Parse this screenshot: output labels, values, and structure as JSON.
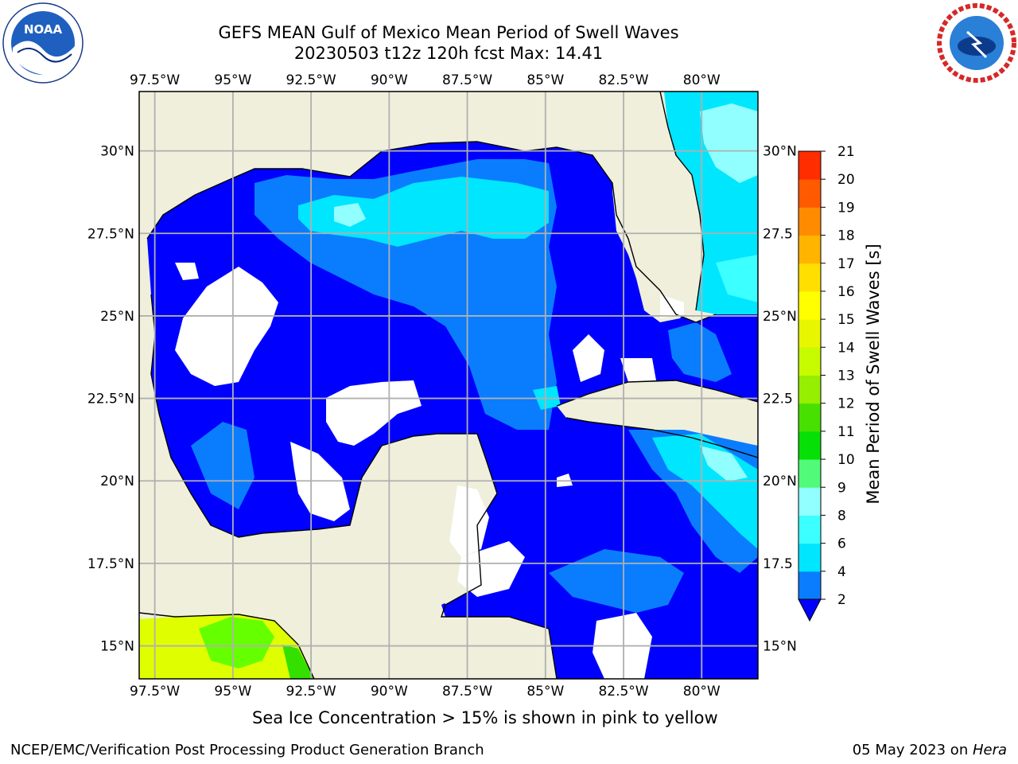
{
  "title": {
    "line1": "GEFS MEAN Gulf of Mexico Mean Period of Swell Waves",
    "line2": "20230503 t12z 120h fcst   Max: 14.41"
  },
  "axes": {
    "lon_labels": [
      "97.5°W",
      "95°W",
      "92.5°W",
      "90°W",
      "87.5°W",
      "85°W",
      "82.5°W",
      "80°W"
    ],
    "lon_values": [
      -97.5,
      -95,
      -92.5,
      -90,
      -87.5,
      -85,
      -82.5,
      -80
    ],
    "lat_labels": [
      "30°N",
      "27.5°N",
      "25°N",
      "22.5°N",
      "20°N",
      "17.5°N",
      "15°N"
    ],
    "lat_values": [
      30,
      27.5,
      25,
      22.5,
      20,
      17.5,
      15
    ],
    "right_lat_labels": [
      "30°N",
      "27.5",
      "25°N",
      "22.5",
      "20°N",
      "17.5",
      "15°N"
    ],
    "lon_range": [
      -98,
      -78.2
    ],
    "lat_range": [
      14,
      31.8
    ],
    "grid": true
  },
  "colorbar": {
    "label": "Mean Period of Swell Waves [s]",
    "ticks": [
      "2",
      "4",
      "6",
      "8",
      "9",
      "10",
      "11",
      "12",
      "13",
      "14",
      "15",
      "16",
      "17",
      "18",
      "19",
      "20",
      "21"
    ],
    "colors": [
      "#0a7dff",
      "#00e6ff",
      "#3cffff",
      "#91ffff",
      "#51fa79",
      "#07e007",
      "#48e000",
      "#96ee00",
      "#c6fb00",
      "#e8f600",
      "#ffff00",
      "#ffdf00",
      "#ffb400",
      "#ff8c00",
      "#ff5a00",
      "#ff2d00"
    ],
    "extend_color": "#0000ff"
  },
  "colors": {
    "land": "#efefdc",
    "ocean_low": "#0000ff",
    "ocean_2_4": "#0a7dff",
    "ocean_4_6": "#00e6ff",
    "ocean_6_8": "#3cffff",
    "ocean_8_9": "#91ffff",
    "green": "#66ff00",
    "yellow_green": "#dfff00",
    "grid": "#b0b0b0"
  },
  "caption": "Sea Ice Concentration > 15% is shown in pink to yellow",
  "footer": {
    "left": "NCEP/EMC/Verification Post Processing Product Generation Branch",
    "right_date": "05 May 2023 on ",
    "right_host": "Hera"
  },
  "logos": {
    "noaa_text": "NOAA",
    "noaa_icon": "noaa-logo",
    "nws_icon": "nws-logo"
  }
}
